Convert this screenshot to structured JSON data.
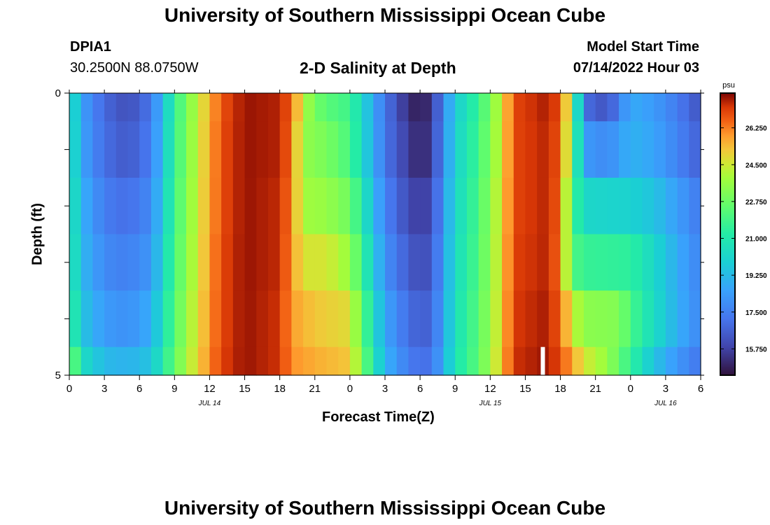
{
  "header": {
    "title": "University of Southern Mississippi Ocean Cube",
    "station_id": "DPIA1",
    "coordinates": "30.2500N  88.0750W",
    "subtitle": "2-D Salinity at Depth",
    "model_start_label": "Model Start Time",
    "model_start_value": "07/14/2022 Hour 03"
  },
  "footer": {
    "title": "University of Southern Mississippi Ocean Cube"
  },
  "chart_data": {
    "type": "heatmap",
    "title": "2-D Salinity at Depth",
    "xlabel": "Forecast Time(Z)",
    "ylabel": "Depth (ft)",
    "x_ticks": [
      "0",
      "3",
      "6",
      "9",
      "12",
      "15",
      "18",
      "21",
      "0",
      "3",
      "6",
      "9",
      "12",
      "15",
      "18",
      "21",
      "0",
      "3",
      "6"
    ],
    "x_hours": [
      0,
      54
    ],
    "date_labels": [
      {
        "text": "JUL 14",
        "hour": 12
      },
      {
        "text": "JUL 15",
        "hour": 36
      },
      {
        "text": "JUL 16",
        "hour": 51
      }
    ],
    "y_ticks": [
      "0",
      "5"
    ],
    "ylim": [
      0,
      5
    ],
    "depth_rows": [
      0,
      1,
      2,
      3,
      4,
      5
    ],
    "colorbar": {
      "unit": "psu",
      "min": 14.5,
      "max": 27.9,
      "tick_values": [
        26.25,
        24.5,
        22.75,
        21.0,
        19.25,
        17.5,
        15.75
      ],
      "tick_labels": [
        "26.250",
        "24.500",
        "22.750",
        "21.000",
        "19.250",
        "17.500",
        "15.750"
      ]
    },
    "missing": {
      "hour": 40.5,
      "depth_from": 4.5,
      "depth_to": 5
    },
    "series": [
      {
        "name": "0-0.5 ft",
        "breakpoints": [
          [
            0,
            21.2
          ],
          [
            1,
            18.5
          ],
          [
            3,
            16.8
          ],
          [
            5,
            16.1
          ],
          [
            7,
            17.2
          ],
          [
            9,
            21.5
          ],
          [
            11,
            24.3
          ],
          [
            13,
            26.8
          ],
          [
            15,
            27.7
          ],
          [
            18,
            27.5
          ],
          [
            19,
            26.6
          ],
          [
            20,
            24.2
          ],
          [
            21,
            22.8
          ],
          [
            22.5,
            22.2
          ],
          [
            24,
            21.8
          ],
          [
            25.5,
            19.5
          ],
          [
            27,
            17.2
          ],
          [
            29,
            15.2
          ],
          [
            30,
            14.8
          ],
          [
            31,
            15.4
          ],
          [
            32,
            17.8
          ],
          [
            33,
            19.8
          ],
          [
            35,
            21.6
          ],
          [
            37,
            24.5
          ],
          [
            38,
            27.0
          ],
          [
            41,
            27.6
          ],
          [
            42,
            26.8
          ],
          [
            43,
            23.5
          ],
          [
            44,
            17.0
          ],
          [
            46,
            16.2
          ],
          [
            48,
            18.8
          ],
          [
            50,
            18.3
          ],
          [
            52,
            17.4
          ],
          [
            54,
            16.2
          ]
        ]
      },
      {
        "name": "0.5-1 ft",
        "breakpoints": [
          [
            0,
            21.3
          ],
          [
            1,
            18.6
          ],
          [
            3,
            17.0
          ],
          [
            5,
            16.4
          ],
          [
            7,
            17.4
          ],
          [
            9,
            21.6
          ],
          [
            11,
            24.4
          ],
          [
            13,
            26.9
          ],
          [
            15,
            27.7
          ],
          [
            18,
            27.5
          ],
          [
            19,
            26.4
          ],
          [
            20,
            23.5
          ],
          [
            22,
            23.0
          ],
          [
            24,
            22.0
          ],
          [
            25.5,
            19.6
          ],
          [
            27,
            17.2
          ],
          [
            29,
            15.6
          ],
          [
            30,
            15.0
          ],
          [
            31,
            15.6
          ],
          [
            32,
            17.9
          ],
          [
            33,
            20.0
          ],
          [
            35,
            21.8
          ],
          [
            37,
            24.6
          ],
          [
            38,
            27.0
          ],
          [
            41,
            27.5
          ],
          [
            42,
            26.6
          ],
          [
            43,
            23.0
          ],
          [
            44,
            18.3
          ],
          [
            46,
            17.8
          ],
          [
            48,
            19.0
          ],
          [
            50,
            18.6
          ],
          [
            52,
            17.6
          ],
          [
            54,
            16.6
          ]
        ]
      },
      {
        "name": "1-2 ft",
        "breakpoints": [
          [
            0,
            21.4
          ],
          [
            1,
            19.0
          ],
          [
            3,
            17.4
          ],
          [
            5,
            17.0
          ],
          [
            7,
            17.8
          ],
          [
            9,
            21.8
          ],
          [
            11,
            24.5
          ],
          [
            13,
            26.9
          ],
          [
            15,
            27.7
          ],
          [
            18,
            27.4
          ],
          [
            19,
            26.2
          ],
          [
            20,
            23.8
          ],
          [
            22,
            23.6
          ],
          [
            24,
            22.8
          ],
          [
            25.5,
            20.2
          ],
          [
            27,
            17.6
          ],
          [
            29,
            16.0
          ],
          [
            30,
            15.6
          ],
          [
            31,
            16.0
          ],
          [
            32,
            18.2
          ],
          [
            33,
            20.2
          ],
          [
            35,
            22.0
          ],
          [
            37,
            24.8
          ],
          [
            38,
            27.0
          ],
          [
            41,
            27.5
          ],
          [
            42,
            26.4
          ],
          [
            43,
            22.0
          ],
          [
            44,
            20.2
          ],
          [
            48,
            20.0
          ],
          [
            50,
            19.5
          ],
          [
            52,
            18.4
          ],
          [
            54,
            17.3
          ]
        ]
      },
      {
        "name": "2-3 ft",
        "breakpoints": [
          [
            0,
            21.5
          ],
          [
            1,
            19.2
          ],
          [
            3,
            17.8
          ],
          [
            5,
            17.5
          ],
          [
            7,
            18.2
          ],
          [
            9,
            22.0
          ],
          [
            11,
            24.6
          ],
          [
            13,
            27.0
          ],
          [
            15,
            27.7
          ],
          [
            18,
            27.4
          ],
          [
            19,
            26.0
          ],
          [
            20,
            24.6
          ],
          [
            22,
            24.6
          ],
          [
            24,
            23.6
          ],
          [
            25.5,
            20.8
          ],
          [
            27,
            18.0
          ],
          [
            29,
            16.5
          ],
          [
            30,
            16.0
          ],
          [
            31,
            16.4
          ],
          [
            32,
            18.4
          ],
          [
            33,
            20.4
          ],
          [
            35,
            22.1
          ],
          [
            37,
            24.9
          ],
          [
            38,
            27.1
          ],
          [
            41,
            27.5
          ],
          [
            42,
            26.2
          ],
          [
            43,
            22.2
          ],
          [
            44,
            21.6
          ],
          [
            48,
            21.4
          ],
          [
            50,
            20.2
          ],
          [
            52,
            18.8
          ],
          [
            54,
            17.6
          ]
        ]
      },
      {
        "name": "3-4 ft",
        "breakpoints": [
          [
            0,
            22.0
          ],
          [
            1,
            19.6
          ],
          [
            3,
            18.3
          ],
          [
            5,
            18.0
          ],
          [
            7,
            18.8
          ],
          [
            9,
            22.3
          ],
          [
            11,
            24.8
          ],
          [
            13,
            27.0
          ],
          [
            15,
            27.7
          ],
          [
            18,
            27.3
          ],
          [
            19,
            25.8
          ],
          [
            21,
            25.2
          ],
          [
            24,
            24.8
          ],
          [
            25,
            22.5
          ],
          [
            27,
            18.6
          ],
          [
            29,
            17.0
          ],
          [
            30,
            16.5
          ],
          [
            31,
            16.8
          ],
          [
            32,
            18.6
          ],
          [
            33,
            20.6
          ],
          [
            35,
            22.3
          ],
          [
            37,
            25.0
          ],
          [
            38,
            27.2
          ],
          [
            41,
            27.6
          ],
          [
            42,
            26.5
          ],
          [
            43,
            24.5
          ],
          [
            44,
            23.4
          ],
          [
            47,
            23.2
          ],
          [
            48,
            22.0
          ],
          [
            50,
            20.4
          ],
          [
            52,
            18.9
          ],
          [
            54,
            17.7
          ]
        ]
      },
      {
        "name": "4-5 ft",
        "breakpoints": [
          [
            0,
            23.5
          ],
          [
            1,
            20.5
          ],
          [
            3,
            19.2
          ],
          [
            5,
            19.0
          ],
          [
            7,
            19.5
          ],
          [
            9,
            22.6
          ],
          [
            11,
            25.0
          ],
          [
            13,
            27.1
          ],
          [
            15,
            27.7
          ],
          [
            18,
            27.3
          ],
          [
            19,
            26.0
          ],
          [
            21,
            25.6
          ],
          [
            24,
            25.2
          ],
          [
            25,
            23.0
          ],
          [
            27,
            19.0
          ],
          [
            29,
            17.4
          ],
          [
            30,
            17.0
          ],
          [
            31,
            17.2
          ],
          [
            32,
            18.8
          ],
          [
            33,
            20.8
          ],
          [
            35,
            22.4
          ],
          [
            37,
            25.2
          ],
          [
            38,
            27.3
          ],
          [
            41,
            27.7
          ],
          [
            42,
            26.8
          ],
          [
            43,
            25.8
          ],
          [
            44,
            24.6
          ],
          [
            46,
            23.6
          ],
          [
            48,
            21.5
          ],
          [
            50,
            19.5
          ],
          [
            52,
            18.2
          ],
          [
            54,
            17.2
          ]
        ]
      }
    ]
  }
}
